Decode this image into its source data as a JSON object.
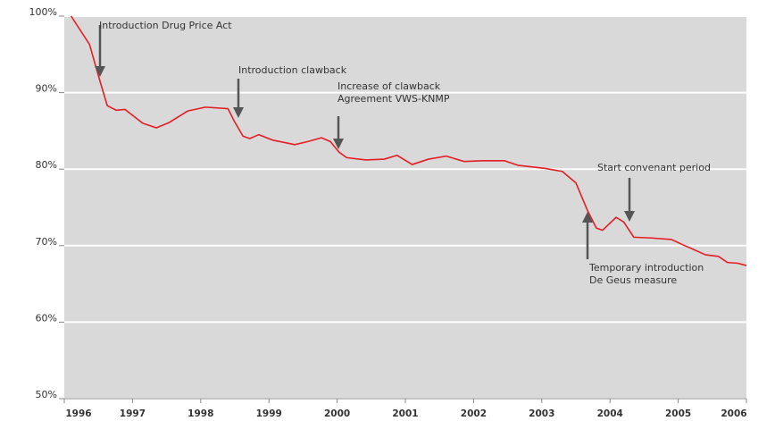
{
  "chart_data": {
    "type": "line",
    "x": [
      1996.1,
      1996.37,
      1996.52,
      1996.63,
      1996.76,
      1996.89,
      1997.02,
      1997.15,
      1997.35,
      1997.54,
      1997.81,
      1998.07,
      1998.4,
      1998.49,
      1998.62,
      1998.72,
      1998.85,
      1999.05,
      1999.38,
      1999.57,
      1999.77,
      1999.9,
      2000.03,
      2000.14,
      2000.42,
      2000.69,
      2000.88,
      2001.1,
      2001.34,
      2001.6,
      2001.86,
      2002.13,
      2002.45,
      2002.65,
      2003.04,
      2003.3,
      2003.5,
      2003.67,
      2003.8,
      2003.89,
      2004.09,
      2004.2,
      2004.35,
      2004.61,
      2004.9,
      2005.07,
      2005.2,
      2005.4,
      2005.59,
      2005.72,
      2005.87,
      2006.0
    ],
    "series": [
      {
        "color": "#e31e24",
        "values": [
          100,
          96.3,
          91.6,
          88.3,
          87.7,
          87.8,
          86.9,
          86.0,
          85.4,
          86.1,
          87.6,
          88.1,
          87.9,
          86.3,
          84.3,
          84.0,
          84.5,
          83.8,
          83.2,
          83.6,
          84.1,
          83.6,
          82.2,
          81.5,
          81.2,
          81.3,
          81.8,
          80.6,
          81.3,
          81.7,
          81.0,
          81.1,
          81.1,
          80.5,
          80.1,
          79.7,
          78.2,
          74.6,
          72.3,
          72.0,
          73.7,
          73.1,
          71.1,
          71.0,
          70.8,
          70.1,
          69.6,
          68.8,
          68.6,
          67.8,
          67.7,
          67.4
        ]
      }
    ],
    "xlim": [
      1996,
      2006
    ],
    "xticks": [
      1996,
      1997,
      1998,
      1999,
      2000,
      2001,
      2002,
      2003,
      2004,
      2005,
      2006
    ],
    "ylim": [
      50,
      100
    ],
    "yticks": [
      {
        "value": 50,
        "label": "50%"
      },
      {
        "value": 60,
        "label": "60%"
      },
      {
        "value": 70,
        "label": "70%"
      },
      {
        "value": 80,
        "label": "80%"
      },
      {
        "value": 90,
        "label": "90%"
      },
      {
        "value": 100,
        "label": "100%"
      }
    ],
    "grid": true,
    "annotations": [
      {
        "lines": [
          "Introduction Drug Price Act"
        ]
      },
      {
        "lines": [
          "Introduction clawback"
        ]
      },
      {
        "lines": [
          "Increase of clawback",
          "Agreement VWS-KNMP"
        ]
      },
      {
        "lines": [
          "Start convenant period"
        ]
      },
      {
        "lines": [
          "Temporary introduction",
          "De Geus measure"
        ]
      }
    ]
  }
}
